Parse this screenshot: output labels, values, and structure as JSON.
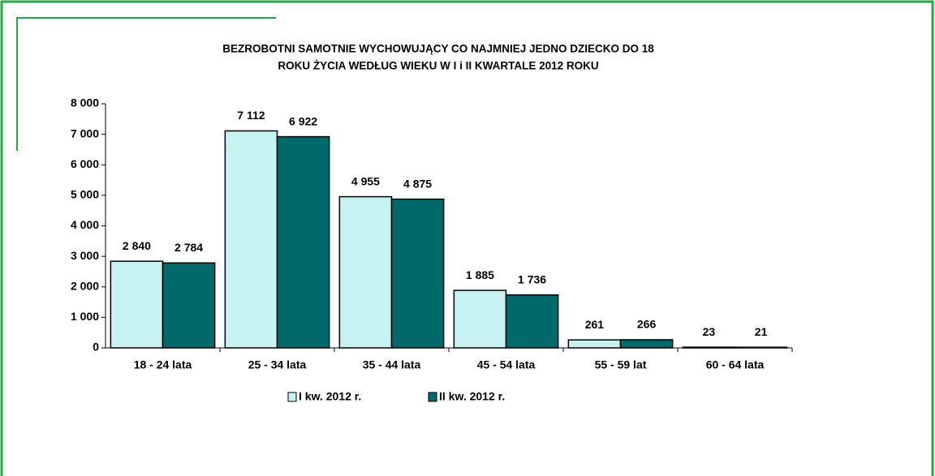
{
  "chart_data": {
    "type": "bar",
    "title": [
      "BEZROBOTNI SAMOTNIE WYCHOWUJĄCY CO NAJMNIEJ JEDNO DZIECKO DO 18",
      "ROKU ŻYCIA WEDŁUG  WIEKU W  I  i II  KWARTALE 2012 ROKU"
    ],
    "categories": [
      "18 - 24 lata",
      "25 - 34 lata",
      "35 - 44 lata",
      "45 - 54 lata",
      "55 - 59 lat",
      "60 - 64 lata"
    ],
    "series": [
      {
        "name": "I kw. 2012 r.",
        "color": "#c6f2f2",
        "values": [
          2840,
          7112,
          4955,
          1885,
          261,
          23
        ],
        "value_labels": [
          "2 840",
          "7 112",
          "4 955",
          "1 885",
          "261",
          "23"
        ]
      },
      {
        "name": "II kw. 2012 r.",
        "color": "#006a6a",
        "values": [
          2784,
          6922,
          4875,
          1736,
          266,
          21
        ],
        "value_labels": [
          "2 784",
          "6 922",
          "4 875",
          "1 736",
          "266",
          "21"
        ]
      }
    ],
    "ylim": [
      0,
      8000
    ],
    "yticks": [
      0,
      {
        "value": 1000,
        "label": "1 000"
      },
      {
        "value": 2000,
        "label": "2 000"
      },
      {
        "value": 3000,
        "label": "3 000"
      },
      {
        "value": 4000,
        "label": "4 000"
      },
      {
        "value": 5000,
        "label": "5 000"
      },
      {
        "value": 6000,
        "label": "6 000"
      },
      {
        "value": 7000,
        "label": "7 000"
      },
      {
        "value": 8000,
        "label": "8 000"
      }
    ],
    "grid": false
  }
}
